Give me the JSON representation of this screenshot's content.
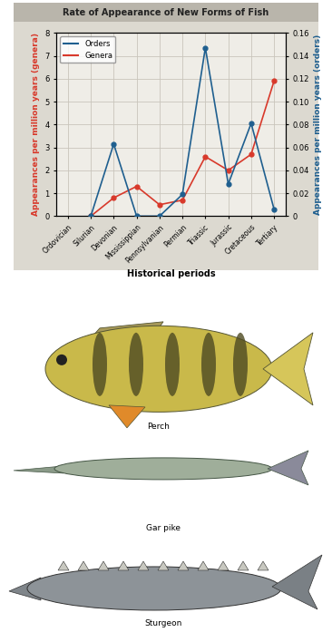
{
  "chart_data": {
    "type": "line",
    "title": "Rate of Appearance of New Forms of Fish",
    "x_label": "Historical periods",
    "y_label": "Appearances per million years (genera)",
    "y2_label": "Appearances per million years (orders)",
    "categories": [
      "Ordovician",
      "Silurian",
      "Devonian",
      "Mississippian",
      "Pennsylvanian",
      "Permian",
      "Triassic",
      "Jurassic",
      "Cretaceous",
      "Tertiary"
    ],
    "series": [
      {
        "name": "Orders",
        "color": "#1f5f8f",
        "marker": "o",
        "axis": "y2",
        "values": [
          null,
          0,
          0.063,
          0,
          0,
          0.019,
          0.147,
          0.028,
          0.081,
          0.006
        ]
      },
      {
        "name": "Genera",
        "color": "#d8392b",
        "marker": "o",
        "values": [
          null,
          0,
          0.8,
          1.3,
          0.5,
          0.7,
          2.6,
          2.0,
          2.7,
          5.9
        ]
      }
    ],
    "ylim": [
      0,
      8
    ],
    "yticks": [
      0,
      1,
      2,
      3,
      4,
      5,
      6,
      7,
      8
    ],
    "y2lim": [
      0,
      0.16
    ],
    "y2ticks": [
      0,
      0.02,
      0.04,
      0.06,
      0.08,
      {
        "value": 0.1,
        "label": "0.10"
      },
      0.12,
      0.14,
      0.16
    ],
    "grid": true,
    "legend": "upper left"
  },
  "illustrations": [
    {
      "caption": "Perch"
    },
    {
      "caption": "Gar pike"
    },
    {
      "caption": "Sturgeon"
    }
  ]
}
